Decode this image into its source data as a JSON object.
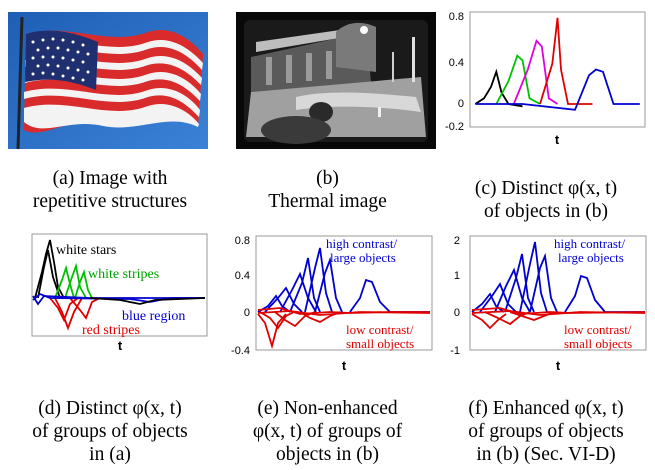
{
  "panels": {
    "a": {
      "caption": [
        "(a) Image with",
        "repetitive structures"
      ]
    },
    "b": {
      "caption": [
        "(b)",
        "Thermal image"
      ]
    },
    "c": {
      "caption": [
        "(c) Distinct φ(x, t)",
        "of objects in (b)"
      ],
      "ticks": [
        "0.8",
        "0.4",
        "0",
        "-0.2"
      ],
      "xlabel": "t"
    },
    "d": {
      "caption": [
        "(d) Distinct φ(x, t)",
        "of groups of objects",
        "in (a)"
      ],
      "xlabel": "t",
      "annotations": {
        "white_stars": "white stars",
        "white_stripes": "white stripes",
        "blue_region": "blue region",
        "red_stripes": "red stripes"
      }
    },
    "e": {
      "caption": [
        "(e) Non-enhanced",
        "φ(x, t) of groups of",
        "objects in (b)"
      ],
      "ticks": [
        "0.8",
        "0.4",
        "0",
        "-0.4"
      ],
      "xlabel": "t",
      "annotations": {
        "high1": "high contrast/",
        "high2": "large objects",
        "low1": "low contrast/",
        "low2": "small objects"
      }
    },
    "f": {
      "caption": [
        "(f) Enhanced φ(x, t)",
        "of groups of objects",
        "in (b) (Sec. VI-D)"
      ],
      "ticks": [
        "2",
        "1",
        "0",
        "-1"
      ],
      "xlabel": "t",
      "annotations": {
        "high1": "high contrast/",
        "high2": "large objects",
        "low1": "low contrast/",
        "low2": "small objects"
      }
    }
  },
  "chart_data": [
    {
      "type": "line",
      "panel": "c",
      "ylim": [
        -0.2,
        0.8
      ],
      "series": [
        {
          "color": "#000000",
          "x": [
            0.03,
            0.08,
            0.12,
            0.15,
            0.18,
            0.22,
            0.3
          ],
          "values": [
            0,
            0.05,
            0.15,
            0.28,
            0.1,
            0,
            -0.02
          ]
        },
        {
          "color": "#00c000",
          "x": [
            0.15,
            0.22,
            0.27,
            0.3,
            0.34,
            0.4
          ],
          "values": [
            0,
            0.2,
            0.42,
            0.38,
            0.05,
            0
          ]
        },
        {
          "color": "#e000e0",
          "x": [
            0.25,
            0.33,
            0.38,
            0.41,
            0.45,
            0.5
          ],
          "values": [
            0,
            0.3,
            0.55,
            0.5,
            0.05,
            0
          ]
        },
        {
          "color": "#e00000",
          "x": [
            0.4,
            0.47,
            0.5,
            0.52,
            0.56,
            0.7
          ],
          "values": [
            0,
            0.35,
            0.75,
            0.3,
            0,
            0
          ]
        },
        {
          "color": "#0000d0",
          "x": [
            0.03,
            0.3,
            0.6,
            0.68,
            0.72,
            0.76,
            0.82,
            0.97
          ],
          "values": [
            0,
            0,
            -0.05,
            0.25,
            0.3,
            0.28,
            0,
            0
          ]
        }
      ]
    },
    {
      "type": "line",
      "panel": "d",
      "series": [
        {
          "name": "white stars",
          "color": "#000000"
        },
        {
          "name": "white stripes",
          "color": "#00c000"
        },
        {
          "name": "blue region",
          "color": "#0000d0"
        },
        {
          "name": "red stripes",
          "color": "#e00000"
        }
      ]
    },
    {
      "type": "line",
      "panel": "e",
      "ylim": [
        -0.4,
        0.8
      ],
      "series": [
        {
          "name": "high contrast/ large objects",
          "color": "#0000d0"
        },
        {
          "name": "low contrast/ small objects",
          "color": "#e00000"
        }
      ]
    },
    {
      "type": "line",
      "panel": "f",
      "ylim": [
        -1,
        2
      ],
      "series": [
        {
          "name": "high contrast/ large objects",
          "color": "#0000d0"
        },
        {
          "name": "low contrast/ small objects",
          "color": "#e00000"
        }
      ]
    }
  ]
}
